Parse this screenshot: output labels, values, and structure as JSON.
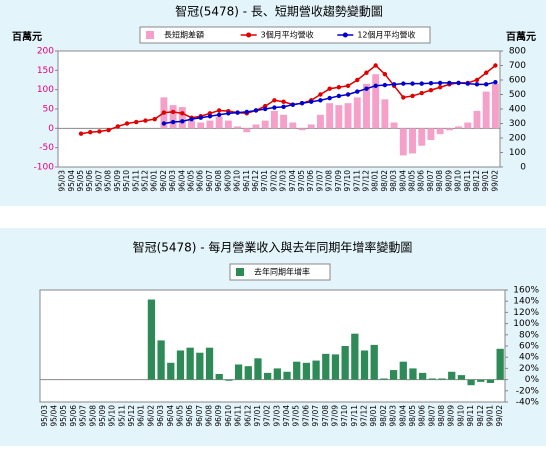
{
  "chart_data": [
    {
      "type": "combo",
      "title": "智冠(5478) - 長、短期營收趨勢變動圖",
      "y_label": "百萬元",
      "y2_label": "百萬元",
      "categories": [
        "95/03",
        "95/04",
        "95/05",
        "95/06",
        "95/07",
        "95/08",
        "95/09",
        "95/10",
        "95/11",
        "95/12",
        "96/01",
        "96/02",
        "96/03",
        "96/04",
        "96/05",
        "96/06",
        "96/07",
        "96/08",
        "96/09",
        "96/10",
        "96/11",
        "96/12",
        "97/01",
        "97/02",
        "97/03",
        "97/04",
        "97/05",
        "97/06",
        "97/07",
        "97/08",
        "97/09",
        "97/10",
        "97/11",
        "97/12",
        "98/01",
        "98/02",
        "98/03",
        "98/04",
        "98/05",
        "98/06",
        "98/07",
        "98/08",
        "98/09",
        "98/10",
        "98/11",
        "98/12",
        "99/01",
        "99/02"
      ],
      "ylim": [
        -100,
        200
      ],
      "yticks": [
        -100,
        -50,
        0,
        50,
        100,
        150,
        200
      ],
      "y2lim": [
        0,
        800
      ],
      "y2ticks": [
        0,
        100,
        200,
        300,
        400,
        500,
        600,
        700,
        800
      ],
      "series": [
        {
          "name": "長短期差額",
          "kind": "bar",
          "color": "#f4a0c8",
          "axis": "y",
          "values": [
            null,
            null,
            null,
            null,
            null,
            null,
            null,
            null,
            null,
            null,
            null,
            80,
            60,
            55,
            20,
            15,
            20,
            30,
            20,
            5,
            -10,
            10,
            20,
            45,
            35,
            15,
            -5,
            10,
            35,
            65,
            60,
            65,
            80,
            115,
            140,
            75,
            15,
            -70,
            -65,
            -45,
            -30,
            -15,
            -5,
            5,
            15,
            45,
            95,
            115
          ]
        },
        {
          "name": "3個月平均營收",
          "kind": "line",
          "color": "#e00000",
          "axis": "y2",
          "values": [
            null,
            null,
            230,
            240,
            245,
            255,
            280,
            300,
            310,
            320,
            330,
            375,
            380,
            370,
            340,
            350,
            370,
            390,
            385,
            375,
            370,
            390,
            420,
            460,
            450,
            430,
            440,
            460,
            500,
            540,
            550,
            560,
            600,
            650,
            700,
            640,
            560,
            480,
            490,
            510,
            530,
            550,
            570,
            580,
            580,
            600,
            650,
            700
          ]
        },
        {
          "name": "12個月平均營收",
          "kind": "line",
          "color": "#0000cc",
          "axis": "y2",
          "values": [
            null,
            null,
            null,
            null,
            null,
            null,
            null,
            null,
            null,
            null,
            null,
            300,
            310,
            315,
            330,
            340,
            350,
            360,
            370,
            375,
            380,
            390,
            400,
            410,
            415,
            430,
            440,
            450,
            460,
            475,
            490,
            500,
            520,
            540,
            560,
            565,
            570,
            575,
            575,
            575,
            578,
            580,
            580,
            580,
            575,
            570,
            570,
            585
          ]
        }
      ]
    },
    {
      "type": "bar",
      "title": "智冠(5478) - 每月營業收入與去年同期年增率變動圖",
      "y_axis_side": "right",
      "categories": [
        "95/03",
        "95/04",
        "95/05",
        "95/06",
        "95/07",
        "95/08",
        "95/09",
        "95/10",
        "95/11",
        "95/12",
        "96/01",
        "96/02",
        "96/03",
        "96/04",
        "96/05",
        "96/06",
        "96/07",
        "96/08",
        "96/09",
        "96/10",
        "96/11",
        "96/12",
        "97/01",
        "97/02",
        "97/03",
        "97/04",
        "97/05",
        "97/06",
        "97/07",
        "97/08",
        "97/09",
        "97/10",
        "97/11",
        "97/12",
        "98/01",
        "98/02",
        "98/03",
        "98/04",
        "98/05",
        "98/06",
        "98/07",
        "98/08",
        "98/09",
        "98/10",
        "98/11",
        "98/12",
        "99/01",
        "99/02"
      ],
      "ylim": [
        -40,
        160
      ],
      "yticks": [
        {
          "value": -40,
          "label": "-40%"
        },
        {
          "value": -20,
          "label": "-20%"
        },
        {
          "value": 0,
          "label": "0%"
        },
        {
          "value": 20,
          "label": "20%"
        },
        {
          "value": 40,
          "label": "40%"
        },
        {
          "value": 60,
          "label": "60%"
        },
        {
          "value": 80,
          "label": "80%"
        },
        {
          "value": 100,
          "label": "100%"
        },
        {
          "value": 120,
          "label": "120%"
        },
        {
          "value": 140,
          "label": "140%"
        },
        {
          "value": 160,
          "label": "160%"
        }
      ],
      "series": [
        {
          "name": "去年同期年增率",
          "kind": "bar",
          "color": "#2e8b57",
          "axis": "y",
          "values": [
            0,
            0,
            0,
            0,
            0,
            0,
            0,
            0,
            0,
            0,
            0,
            143,
            70,
            30,
            52,
            57,
            48,
            57,
            10,
            -2,
            27,
            24,
            38,
            12,
            20,
            14,
            32,
            30,
            34,
            46,
            45,
            60,
            82,
            52,
            62,
            2,
            17,
            32,
            20,
            12,
            2,
            2,
            14,
            8,
            -10,
            -4,
            -6,
            55
          ]
        }
      ]
    }
  ]
}
